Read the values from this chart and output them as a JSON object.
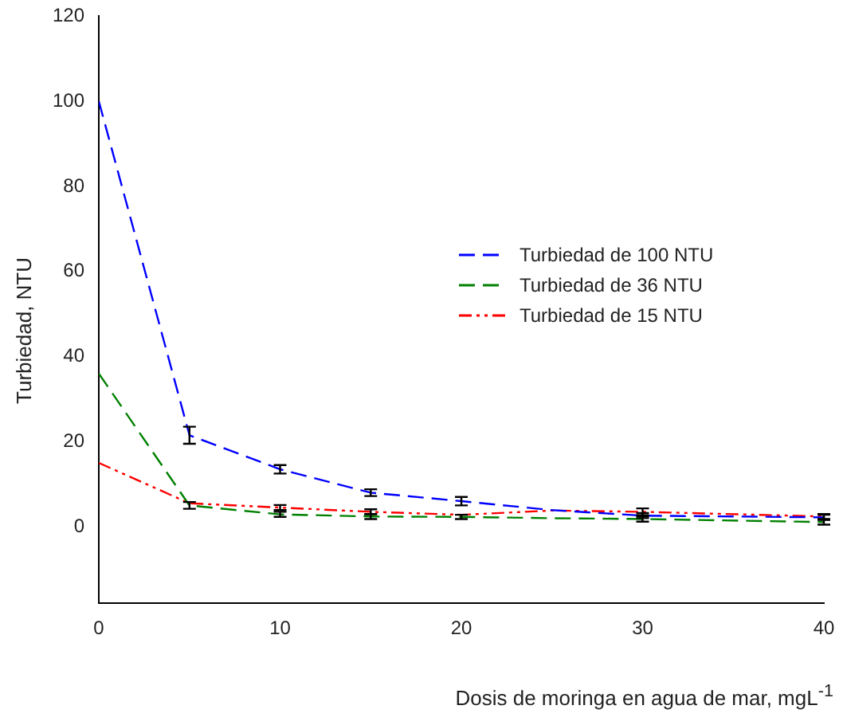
{
  "chart_data": {
    "type": "line",
    "xlabel": "Dosis de moringa en agua de mar, mgL$^{-1}$",
    "ylabel": "Turbiedad, NTU",
    "x": [
      0,
      5,
      10,
      15,
      20,
      25,
      30,
      40
    ],
    "series": [
      {
        "name": "Turbiedad de 100 NTU",
        "color": "#0000ff",
        "line_style": "dashed",
        "values": [
          100,
          21.5,
          13.5,
          8,
          6,
          3.9,
          2.6,
          2.2
        ],
        "errors": [
          null,
          2,
          1,
          0.8,
          1,
          null,
          0.6,
          0.6
        ]
      },
      {
        "name": "Turbiedad de 36 NTU",
        "color": "#008000",
        "line_style": "dashed",
        "values": [
          36,
          5,
          2.9,
          2.4,
          2.3,
          2,
          1.8,
          1.1
        ],
        "errors": [
          null,
          0.8,
          0.6,
          0.6,
          0.5,
          null,
          0.6,
          0.6
        ]
      },
      {
        "name": "Turbiedad de 15 NTU",
        "color": "#ff0000",
        "line_style": "dotted",
        "values": [
          15,
          5.5,
          4.5,
          3.5,
          2.8,
          3.8,
          3.5,
          2.4
        ],
        "errors": [
          null,
          null,
          0.6,
          0.6,
          null,
          null,
          0.8,
          0.6
        ]
      }
    ],
    "xlim": [
      0,
      40
    ],
    "xticks": [
      0,
      10,
      20,
      30,
      40
    ],
    "ylim": [
      -18,
      120
    ],
    "yticks": [
      0,
      20,
      40,
      60,
      80,
      100,
      120
    ],
    "grid": false,
    "legend": "right",
    "marker": "none"
  }
}
